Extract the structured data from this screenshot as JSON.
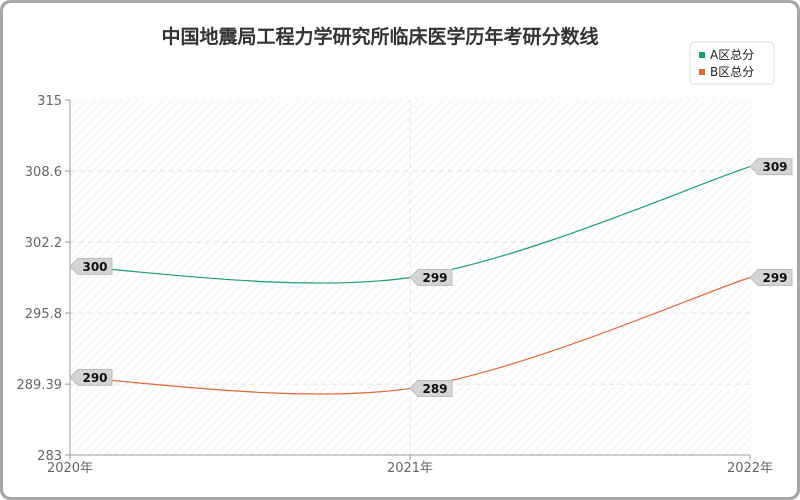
{
  "chart_data": {
    "type": "line",
    "title": "中国地震局工程力学研究所临床医学历年考研分数线",
    "categories": [
      "2020年",
      "2021年",
      "2022年"
    ],
    "y_ticks": [
      "315",
      "308.6",
      "302.2",
      "295.8",
      "289.39",
      "283"
    ],
    "ylim": [
      283,
      315
    ],
    "grid": true,
    "legend_position": "top-right",
    "series": [
      {
        "name": "A区总分",
        "values": [
          300,
          299,
          309
        ],
        "labels": [
          "300",
          "299",
          "309"
        ],
        "color": "#1a9e78"
      },
      {
        "name": "B区总分",
        "values": [
          290,
          289,
          299
        ],
        "labels": [
          "290",
          "289",
          "299"
        ],
        "color": "#e0683a"
      }
    ]
  }
}
